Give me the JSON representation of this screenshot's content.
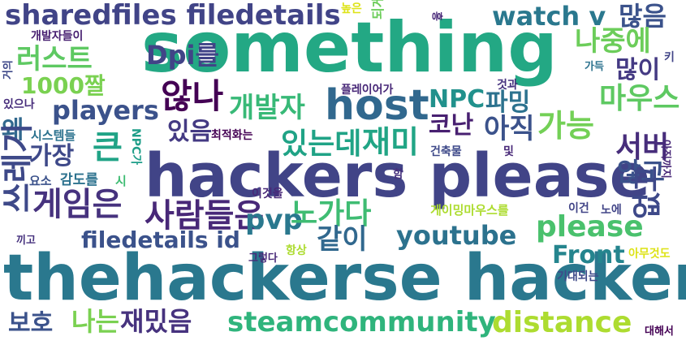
{
  "words": [
    {
      "text": "something",
      "color": "#23a884"
    },
    {
      "text": "hackers please",
      "color": "#414487"
    },
    {
      "text": "thehackerse hackers",
      "color": "#2a788e"
    },
    {
      "text": "sharedfiles filedetails",
      "color": "#414487"
    },
    {
      "text": "watch v",
      "color": "#2a788e"
    },
    {
      "text": "많음",
      "color": "#3b528b"
    },
    {
      "text": "host",
      "color": "#31688e"
    },
    {
      "text": "게임은",
      "color": "#46327e"
    },
    {
      "text": "사람들은",
      "color": "#482878"
    },
    {
      "text": "players",
      "color": "#3b528b"
    },
    {
      "text": "개발자",
      "color": "#38b977"
    },
    {
      "text": "않나",
      "color": "#440154"
    },
    {
      "text": "러스트",
      "color": "#5ec962"
    },
    {
      "text": "Dpi를",
      "color": "#414487"
    },
    {
      "text": "1000짤",
      "color": "#7ad151"
    },
    {
      "text": "나중에",
      "color": "#6ccd5a"
    },
    {
      "text": "많이",
      "color": "#443a83"
    },
    {
      "text": "마우스",
      "color": "#5ec962"
    },
    {
      "text": "NPC",
      "color": "#21918c"
    },
    {
      "text": "파밍",
      "color": "#2c728e"
    },
    {
      "text": "코난",
      "color": "#482071"
    },
    {
      "text": "재미",
      "color": "#21a585"
    },
    {
      "text": "아직",
      "color": "#3b528b"
    },
    {
      "text": "가능",
      "color": "#73d056"
    },
    {
      "text": "큰",
      "color": "#20a386"
    },
    {
      "text": "있는데",
      "color": "#20a386"
    },
    {
      "text": "있음",
      "color": "#443a83"
    },
    {
      "text": "왜",
      "color": "#31688e"
    },
    {
      "text": "가장",
      "color": "#3e4989"
    },
    {
      "text": "서버",
      "color": "#472d7b"
    },
    {
      "text": "않고",
      "color": "#3b528b"
    },
    {
      "text": "쓰레기",
      "color": "#3e4989"
    },
    {
      "text": "pvp",
      "color": "#2a788e"
    },
    {
      "text": "노가다",
      "color": "#3fbc73"
    },
    {
      "text": "같이",
      "color": "#31688e"
    },
    {
      "text": "filedetails id",
      "color": "#3b528b"
    },
    {
      "text": "youtube",
      "color": "#2c728e"
    },
    {
      "text": "please",
      "color": "#4ac16d"
    },
    {
      "text": "없고",
      "color": "#3e4989"
    },
    {
      "text": "Front",
      "color": "#25858e"
    },
    {
      "text": "나는",
      "color": "#7ad151"
    },
    {
      "text": "재밌음",
      "color": "#46327e"
    },
    {
      "text": "보호",
      "color": "#3b528b"
    },
    {
      "text": "steamcommunity",
      "color": "#2fb47c"
    },
    {
      "text": "distance",
      "color": "#addc30"
    },
    {
      "text": "개발자들이",
      "color": "#482071"
    },
    {
      "text": "거의",
      "color": "#3e4989"
    },
    {
      "text": "있으나",
      "color": "#472d7b"
    },
    {
      "text": "시스템들",
      "color": "#2c728e"
    },
    {
      "text": "요소",
      "color": "#3b528b"
    },
    {
      "text": "감도를",
      "color": "#2c728e"
    },
    {
      "text": "시",
      "color": "#3fbc73"
    },
    {
      "text": "끼고",
      "color": "#46327e"
    },
    {
      "text": "높은",
      "color": "#dde318"
    },
    {
      "text": "되게",
      "color": "#6ccd5a"
    },
    {
      "text": "흥",
      "color": "#482878"
    },
    {
      "text": "키",
      "color": "#414487"
    },
    {
      "text": "가득",
      "color": "#2c728e"
    },
    {
      "text": "플레이어가",
      "color": "#482878"
    },
    {
      "text": "것과",
      "color": "#46327e"
    },
    {
      "text": "최적화는",
      "color": "#440154"
    },
    {
      "text": "NPC가",
      "color": "#1f9e89"
    },
    {
      "text": "건축물",
      "color": "#3e4989"
    },
    {
      "text": "및",
      "color": "#482878"
    },
    {
      "text": "함",
      "color": "#46327e"
    },
    {
      "text": "아직까지",
      "color": "#482878"
    },
    {
      "text": "이것을",
      "color": "#482878"
    },
    {
      "text": "게이밍마우스를",
      "color": "#addc30"
    },
    {
      "text": "이건",
      "color": "#414487"
    },
    {
      "text": "노에",
      "color": "#414487"
    },
    {
      "text": "그렇다",
      "color": "#482878"
    },
    {
      "text": "항상",
      "color": "#addc30"
    },
    {
      "text": "기대되는",
      "color": "#3e4989"
    },
    {
      "text": "아무것도",
      "color": "#dde318"
    },
    {
      "text": "대해서",
      "color": "#440154"
    }
  ]
}
